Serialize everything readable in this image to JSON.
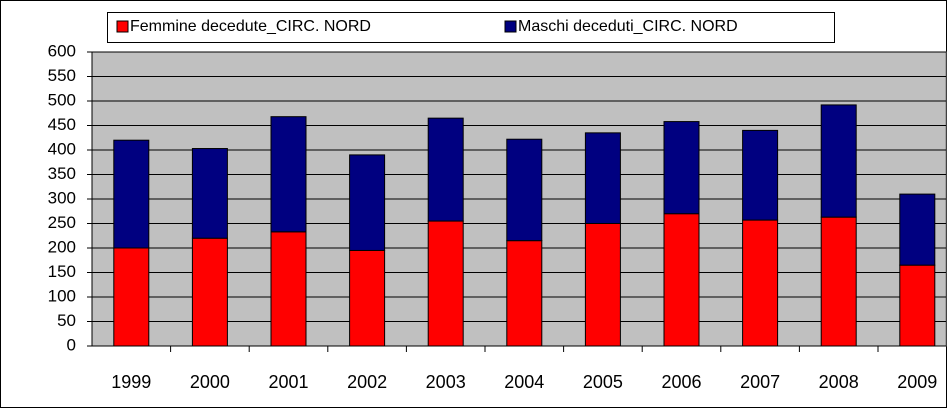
{
  "chart_data": {
    "type": "stacked_bar",
    "categories": [
      "1999",
      "2000",
      "2001",
      "2002",
      "2003",
      "2004",
      "2005",
      "2006",
      "2007",
      "2008",
      "2009"
    ],
    "series": [
      {
        "name": "Femmine decedute_CIRC. NORD",
        "color": "#ff0000",
        "values": [
          200,
          220,
          233,
          195,
          255,
          215,
          250,
          270,
          257,
          263,
          165
        ]
      },
      {
        "name": "Maschi deceduti_CIRC. NORD",
        "color": "#000080",
        "values": [
          220,
          183,
          235,
          195,
          210,
          207,
          185,
          188,
          183,
          229,
          145
        ]
      }
    ],
    "ylim": [
      0,
      600
    ],
    "yticks": [
      0,
      50,
      100,
      150,
      200,
      250,
      300,
      350,
      400,
      450,
      500,
      550,
      600
    ],
    "grid": true,
    "legend": "top"
  }
}
